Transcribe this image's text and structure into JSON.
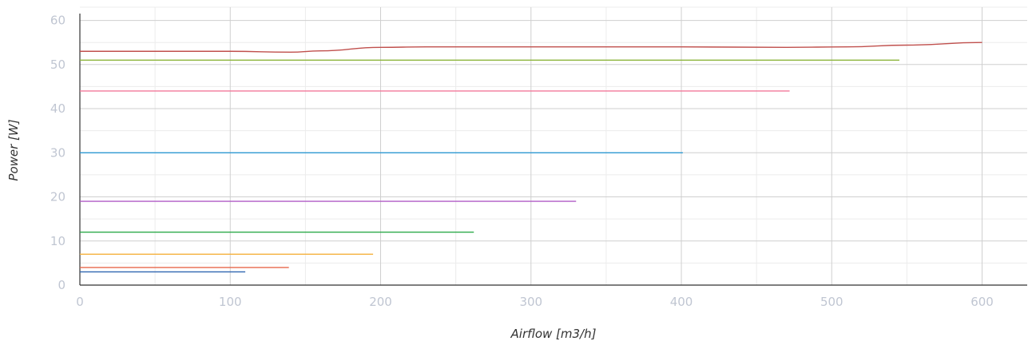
{
  "chart_data": {
    "type": "line",
    "title": "",
    "xlabel": "Airflow [m3/h]",
    "ylabel": "Power [W]",
    "xlim": [
      0,
      630
    ],
    "ylim": [
      0,
      63
    ],
    "x_ticks": [
      0,
      100,
      200,
      300,
      400,
      500,
      600
    ],
    "y_ticks": [
      0,
      10,
      20,
      30,
      40,
      50,
      60
    ],
    "grid": true,
    "legend": "none",
    "series": [
      {
        "color": "#c0504d",
        "points": [
          [
            0,
            53
          ],
          [
            100,
            53
          ],
          [
            140,
            52.8
          ],
          [
            160,
            53.1
          ],
          [
            200,
            53.9
          ],
          [
            230,
            54
          ],
          [
            400,
            54
          ],
          [
            470,
            53.9
          ],
          [
            510,
            54
          ],
          [
            550,
            54.4
          ],
          [
            600,
            55
          ]
        ]
      },
      {
        "color": "#8db53b",
        "points": [
          [
            0,
            51
          ],
          [
            545,
            51
          ]
        ]
      },
      {
        "color": "#f2799a",
        "points": [
          [
            0,
            44
          ],
          [
            472,
            44
          ]
        ]
      },
      {
        "color": "#2e9ad3",
        "points": [
          [
            0,
            30
          ],
          [
            401,
            30
          ]
        ]
      },
      {
        "color": "#b05cc6",
        "points": [
          [
            0,
            19
          ],
          [
            330,
            19
          ]
        ]
      },
      {
        "color": "#2eaa4a",
        "points": [
          [
            0,
            12
          ],
          [
            262,
            12
          ]
        ]
      },
      {
        "color": "#f5b13d",
        "points": [
          [
            0,
            7
          ],
          [
            195,
            7
          ]
        ]
      },
      {
        "color": "#e8674a",
        "points": [
          [
            0,
            4
          ],
          [
            139,
            4
          ]
        ]
      },
      {
        "color": "#2f64b0",
        "points": [
          [
            0,
            3
          ],
          [
            110,
            3
          ]
        ]
      }
    ]
  }
}
